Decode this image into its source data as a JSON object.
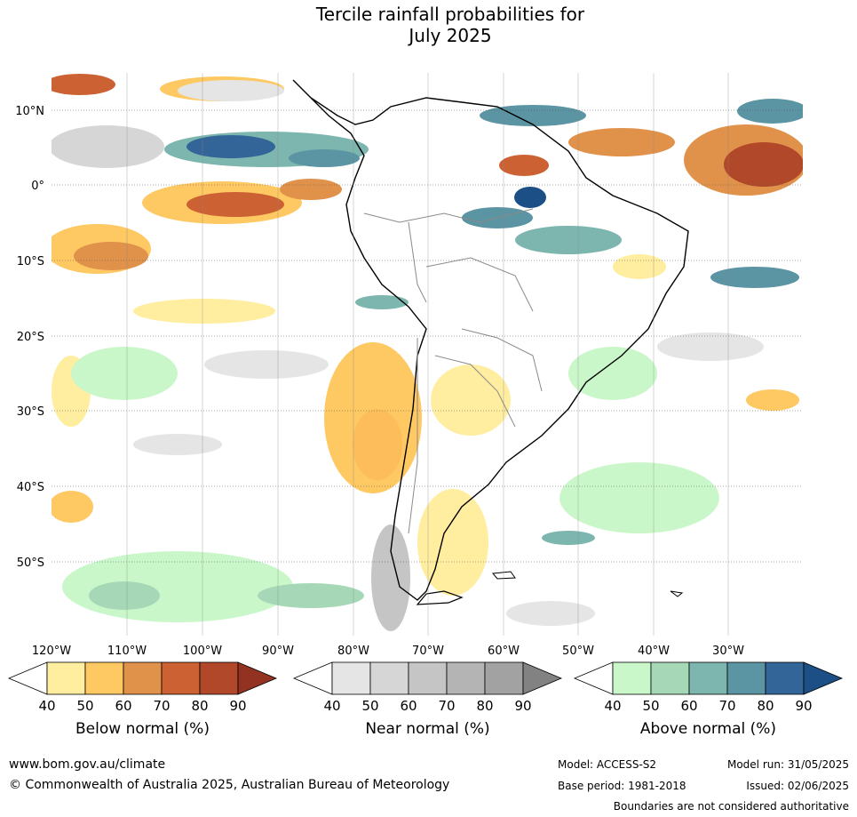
{
  "title": {
    "line1": "Tercile rainfall probabilities for",
    "line2": "July 2025"
  },
  "map": {
    "lat_labels": [
      "10°N",
      "0°",
      "10°S",
      "20°S",
      "30°S",
      "40°S",
      "50°S"
    ],
    "lon_labels": [
      "120°W",
      "110°W",
      "100°W",
      "90°W",
      "80°W",
      "70°W",
      "60°W",
      "50°W",
      "40°W",
      "30°W"
    ]
  },
  "legends": [
    {
      "name": "below",
      "title": "Below normal (%)",
      "ticks": [
        "40",
        "50",
        "60",
        "70",
        "80",
        "90"
      ],
      "colors": [
        "#ffeda0",
        "#fec862",
        "#e0914a",
        "#cc6233",
        "#b04829",
        "#933220"
      ]
    },
    {
      "name": "near",
      "title": "Near normal (%)",
      "ticks": [
        "40",
        "50",
        "60",
        "70",
        "80",
        "90"
      ],
      "colors": [
        "#e5e5e5",
        "#d6d6d6",
        "#c5c5c5",
        "#b4b4b4",
        "#a2a2a2",
        "#828282"
      ]
    },
    {
      "name": "above",
      "title": "Above normal (%)",
      "ticks": [
        "40",
        "50",
        "60",
        "70",
        "80",
        "90"
      ],
      "colors": [
        "#c9f7c9",
        "#a6d8b8",
        "#7cb6ae",
        "#5b94a2",
        "#346599",
        "#1b4f86"
      ]
    }
  ],
  "footer": {
    "website": "www.bom.gov.au/climate",
    "copyright": "© Commonwealth of Australia 2025, Australian Bureau of Meteorology",
    "model": "Model: ACCESS-S2",
    "base_period": "Base period: 1981-2018",
    "model_run": "Model run: 31/05/2025",
    "issued": "Issued: 02/06/2025",
    "disclaimer": "Boundaries are not considered authoritative"
  }
}
